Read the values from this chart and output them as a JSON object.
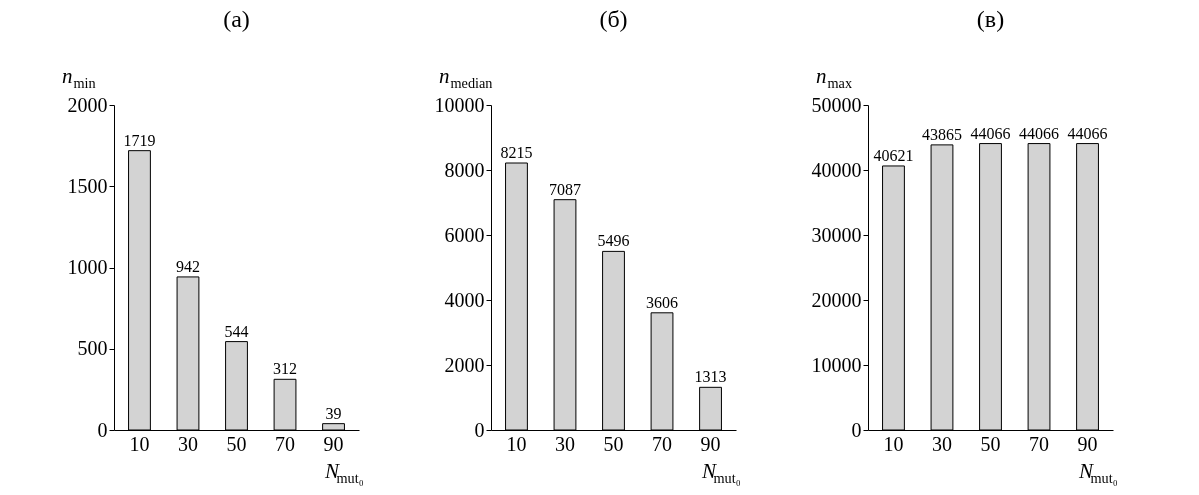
{
  "chart_data": [
    {
      "type": "bar",
      "title": "(а)",
      "ylabel": "n$_{min}$",
      "xlabel": "N$_{mut₀}$",
      "categories": [
        "10",
        "30",
        "50",
        "70",
        "90"
      ],
      "values": [
        1719,
        942,
        544,
        312,
        39
      ],
      "color": "#d3d3d3",
      "ylim": [
        0,
        2000
      ],
      "yticks": [
        0,
        500,
        1000,
        1500,
        2000
      ],
      "data_labels": true,
      "grid": false
    },
    {
      "type": "bar",
      "title": "(б)",
      "ylabel": "n$_{median}$",
      "xlabel": "N$_{mut₀}$",
      "categories": [
        "10",
        "30",
        "50",
        "70",
        "90"
      ],
      "values": [
        8215,
        7087,
        5496,
        3606,
        1313
      ],
      "color": "#d3d3d3",
      "ylim": [
        0,
        10000
      ],
      "yticks": [
        0,
        2000,
        4000,
        6000,
        8000,
        10000
      ],
      "data_labels": true,
      "grid": false
    },
    {
      "type": "bar",
      "title": "(в)",
      "ylabel": "n$_{max}$",
      "xlabel": "N$_{mut₀}$",
      "categories": [
        "10",
        "30",
        "50",
        "70",
        "90"
      ],
      "values": [
        40621,
        43865,
        44066,
        44066,
        44066
      ],
      "color": "#d3d3d3",
      "ylim": [
        0,
        50000
      ],
      "yticks": [
        0,
        10000,
        20000,
        30000,
        40000,
        50000
      ],
      "data_labels": true,
      "grid": false
    }
  ]
}
